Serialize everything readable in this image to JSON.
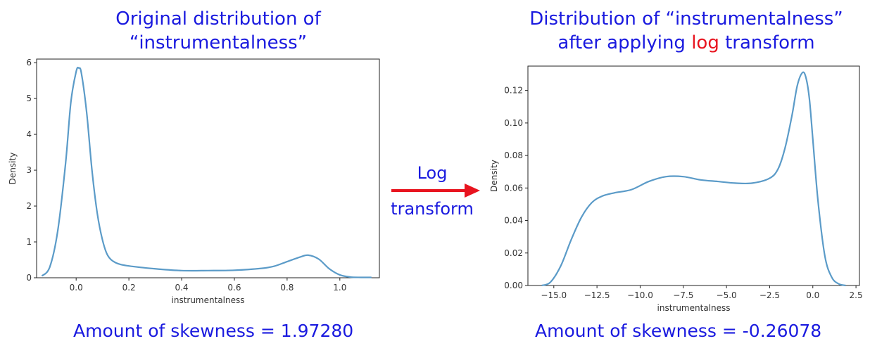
{
  "arrow": {
    "label_line1": "Log",
    "label_line2": "transform",
    "color": "#e8141f"
  },
  "colors": {
    "title": "#1a1adf",
    "highlight": "#e8141f",
    "curve": "#5b9bc8"
  },
  "chart_data": [
    {
      "type": "line",
      "title_line1": "Original distribution of",
      "title_line2": "“instrumentalness”",
      "xlabel": "instrumentalness",
      "ylabel": "Density",
      "xlim": [
        -0.15,
        1.15
      ],
      "ylim": [
        0,
        6.1
      ],
      "xticks": [
        0.0,
        0.2,
        0.4,
        0.6,
        0.8,
        1.0
      ],
      "xtick_labels": [
        "0.0",
        "0.2",
        "0.4",
        "0.6",
        "0.8",
        "1.0"
      ],
      "yticks": [
        0,
        1,
        2,
        3,
        4,
        5,
        6
      ],
      "ytick_labels": [
        "0",
        "1",
        "2",
        "3",
        "4",
        "5",
        "6"
      ],
      "footer": "Amount of skewness = 1.97280",
      "series": [
        {
          "x": [
            -0.13,
            -0.1,
            -0.07,
            -0.04,
            -0.02,
            0.0,
            0.01,
            0.02,
            0.04,
            0.06,
            0.08,
            0.1,
            0.12,
            0.15,
            0.2,
            0.3,
            0.4,
            0.5,
            0.6,
            0.7,
            0.75,
            0.8,
            0.85,
            0.88,
            0.92,
            0.96,
            1.0,
            1.04,
            1.08,
            1.12
          ],
          "y": [
            0.05,
            0.3,
            1.3,
            3.2,
            4.9,
            5.75,
            5.85,
            5.7,
            4.6,
            3.0,
            1.8,
            1.05,
            0.62,
            0.42,
            0.33,
            0.25,
            0.2,
            0.2,
            0.21,
            0.26,
            0.32,
            0.45,
            0.58,
            0.63,
            0.52,
            0.25,
            0.08,
            0.02,
            0.01,
            0.01
          ]
        }
      ]
    },
    {
      "type": "line",
      "title_line1": "Distribution of “instrumentalness”",
      "title_line2_pre": "after applying ",
      "title_line2_hl": "log",
      "title_line2_post": " transform",
      "xlabel": "instrumentalness",
      "ylabel": "Density",
      "xlim": [
        -16.5,
        2.7
      ],
      "ylim": [
        0,
        0.135
      ],
      "xticks": [
        -15.0,
        -12.5,
        -10.0,
        -7.5,
        -5.0,
        -2.5,
        0.0,
        2.5
      ],
      "xtick_labels": [
        "−15.0",
        "−12.5",
        "−10.0",
        "−7.5",
        "−5.0",
        "−2.5",
        "0.0",
        "2.5"
      ],
      "yticks": [
        0.0,
        0.02,
        0.04,
        0.06,
        0.08,
        0.1,
        0.12
      ],
      "ytick_labels": [
        "0.00",
        "0.02",
        "0.04",
        "0.06",
        "0.08",
        "0.10",
        "0.12"
      ],
      "footer": "Amount of skewness = -0.26078",
      "series": [
        {
          "x": [
            -15.7,
            -15.2,
            -14.6,
            -14.0,
            -13.4,
            -12.8,
            -12.2,
            -11.5,
            -10.5,
            -9.5,
            -8.5,
            -7.5,
            -6.5,
            -5.5,
            -4.5,
            -3.5,
            -2.5,
            -2.0,
            -1.6,
            -1.2,
            -0.9,
            -0.6,
            -0.4,
            -0.2,
            0.0,
            0.3,
            0.7,
            1.1,
            1.5,
            1.9
          ],
          "y": [
            0.0,
            0.002,
            0.012,
            0.028,
            0.042,
            0.051,
            0.055,
            0.057,
            0.059,
            0.064,
            0.067,
            0.067,
            0.065,
            0.064,
            0.063,
            0.063,
            0.066,
            0.072,
            0.085,
            0.105,
            0.123,
            0.131,
            0.128,
            0.115,
            0.09,
            0.052,
            0.018,
            0.005,
            0.001,
            0.0
          ]
        }
      ]
    }
  ]
}
